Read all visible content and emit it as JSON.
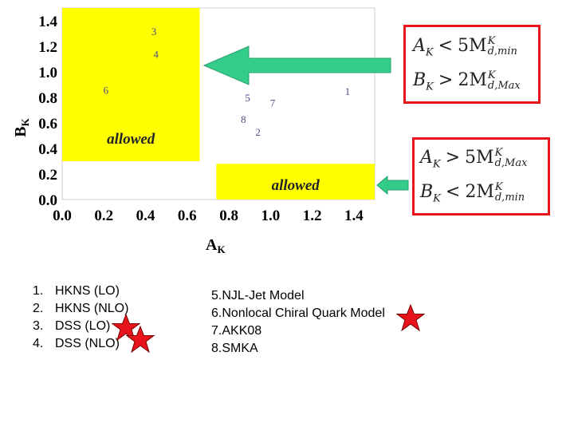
{
  "chart_data": {
    "type": "scatter",
    "xlabel": "A_K",
    "ylabel": "B_K",
    "xlim": [
      0.0,
      1.5
    ],
    "ylim": [
      0.0,
      1.5
    ],
    "x_ticks": [
      "0.0",
      "0.2",
      "0.4",
      "0.6",
      "0.8",
      "1.0",
      "1.2",
      "1.4"
    ],
    "y_ticks": [
      "0.0",
      "0.2",
      "0.4",
      "0.6",
      "0.8",
      "1.0",
      "1.2",
      "1.4"
    ],
    "grid": false,
    "regions": [
      {
        "label": "allowed",
        "x_range": [
          0.0,
          0.66
        ],
        "y_range": [
          0.3,
          1.5
        ],
        "color": "#ffff00"
      },
      {
        "label": "allowed",
        "x_range": [
          0.74,
          1.5
        ],
        "y_range": [
          0.0,
          0.28
        ],
        "color": "#ffff00"
      }
    ],
    "points": [
      {
        "label": "1",
        "x": 1.37,
        "y": 0.85
      },
      {
        "label": "2",
        "x": 0.94,
        "y": 0.53
      },
      {
        "label": "3",
        "x": 0.44,
        "y": 1.32
      },
      {
        "label": "4",
        "x": 0.45,
        "y": 1.14
      },
      {
        "label": "5",
        "x": 0.89,
        "y": 0.8
      },
      {
        "label": "6",
        "x": 0.21,
        "y": 0.86
      },
      {
        "label": "7",
        "x": 1.01,
        "y": 0.76
      },
      {
        "label": "8",
        "x": 0.87,
        "y": 0.63
      }
    ]
  },
  "conditions": {
    "top": {
      "lhs1": "A",
      "sub1": "K",
      "op1": "<",
      "coef1": "5M",
      "sup1": "K",
      "sub1b": "d,min",
      "lhs2": "B",
      "sub2": "K",
      "op2": ">",
      "coef2": "2M",
      "sup2": "K",
      "sub2b": "d,Max"
    },
    "bottom": {
      "lhs1": "A",
      "sub1": "K",
      "op1": ">",
      "coef1": "5M",
      "sup1": "K",
      "sub1b": "d,Max",
      "lhs2": "B",
      "sub2": "K",
      "op2": "<",
      "coef2": "2M",
      "sup2": "K",
      "sub2b": "d,min"
    }
  },
  "legend_left": [
    {
      "num": "1.",
      "text": "HKNS (LO)"
    },
    {
      "num": "2.",
      "text": "HKNS (NLO)"
    },
    {
      "num": "3.",
      "text": "DSS (LO)"
    },
    {
      "num": "4.",
      "text": "DSS (NLO)"
    }
  ],
  "legend_right": [
    {
      "text": "5.NJL-Jet Model"
    },
    {
      "text": "6.Nonlocal Chiral Quark Model"
    },
    {
      "text": "7.AKK08"
    },
    {
      "text": "8.SMKA"
    }
  ],
  "colors": {
    "region": "#ffff00",
    "arrow": "#33cc88",
    "box_border": "#e8141b",
    "star": "#e8141b"
  }
}
